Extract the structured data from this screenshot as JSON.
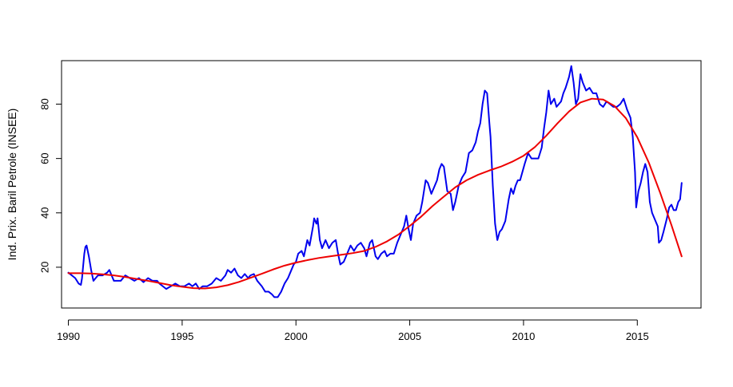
{
  "chart_data": {
    "type": "line",
    "title": "",
    "xlabel": "",
    "ylabel": "Ind. Prix. Baril Petrole (INSEE)",
    "xlim": [
      1989.7,
      2017.8
    ],
    "ylim": [
      5,
      96
    ],
    "x_ticks": [
      1990,
      1995,
      2000,
      2005,
      2010,
      2015
    ],
    "y_ticks": [
      20,
      40,
      60,
      80
    ],
    "grid": false,
    "legend": "none",
    "colors": {
      "series": "#0000ee",
      "trend": "#ee0000"
    },
    "series": [
      {
        "values": [
          [
            1990.0,
            18
          ],
          [
            1990.3,
            16
          ],
          [
            1990.45,
            14
          ],
          [
            1990.55,
            13.5
          ],
          [
            1990.6,
            16
          ],
          [
            1990.7,
            25
          ],
          [
            1990.75,
            27.5
          ],
          [
            1990.8,
            28
          ],
          [
            1990.9,
            24
          ],
          [
            1991.0,
            19
          ],
          [
            1991.1,
            15
          ],
          [
            1991.3,
            17
          ],
          [
            1991.5,
            17
          ],
          [
            1991.7,
            18
          ],
          [
            1991.8,
            19
          ],
          [
            1991.9,
            17
          ],
          [
            1992.0,
            15
          ],
          [
            1992.3,
            15
          ],
          [
            1992.5,
            17
          ],
          [
            1992.7,
            16
          ],
          [
            1992.9,
            15
          ],
          [
            1993.1,
            16
          ],
          [
            1993.3,
            14.5
          ],
          [
            1993.5,
            16
          ],
          [
            1993.7,
            15
          ],
          [
            1993.9,
            15
          ],
          [
            1994.0,
            14
          ],
          [
            1994.15,
            13
          ],
          [
            1994.3,
            12
          ],
          [
            1994.5,
            13
          ],
          [
            1994.7,
            14
          ],
          [
            1994.9,
            13
          ],
          [
            1995.1,
            13
          ],
          [
            1995.3,
            14
          ],
          [
            1995.45,
            13
          ],
          [
            1995.6,
            14
          ],
          [
            1995.75,
            12
          ],
          [
            1995.9,
            13
          ],
          [
            1996.1,
            13
          ],
          [
            1996.3,
            14
          ],
          [
            1996.5,
            16
          ],
          [
            1996.7,
            15
          ],
          [
            1996.9,
            17
          ],
          [
            1997.0,
            19
          ],
          [
            1997.15,
            18
          ],
          [
            1997.3,
            19.5
          ],
          [
            1997.45,
            17
          ],
          [
            1997.6,
            16
          ],
          [
            1997.75,
            17.5
          ],
          [
            1997.9,
            16
          ],
          [
            1998.0,
            17
          ],
          [
            1998.15,
            17.5
          ],
          [
            1998.3,
            15
          ],
          [
            1998.5,
            13
          ],
          [
            1998.65,
            11
          ],
          [
            1998.8,
            11
          ],
          [
            1998.95,
            10
          ],
          [
            1999.05,
            9
          ],
          [
            1999.2,
            9
          ],
          [
            1999.35,
            11
          ],
          [
            1999.5,
            14
          ],
          [
            1999.65,
            16
          ],
          [
            1999.8,
            19
          ],
          [
            1999.9,
            21
          ],
          [
            2000.0,
            22
          ],
          [
            2000.1,
            25
          ],
          [
            2000.25,
            26
          ],
          [
            2000.35,
            24
          ],
          [
            2000.5,
            30
          ],
          [
            2000.6,
            28
          ],
          [
            2000.75,
            35
          ],
          [
            2000.8,
            38
          ],
          [
            2000.9,
            36
          ],
          [
            2000.95,
            38
          ],
          [
            2001.05,
            30
          ],
          [
            2001.15,
            27
          ],
          [
            2001.3,
            30
          ],
          [
            2001.45,
            27
          ],
          [
            2001.6,
            29
          ],
          [
            2001.75,
            30
          ],
          [
            2001.85,
            25
          ],
          [
            2001.95,
            21
          ],
          [
            2002.1,
            22
          ],
          [
            2002.25,
            25
          ],
          [
            2002.4,
            28
          ],
          [
            2002.55,
            26
          ],
          [
            2002.7,
            28
          ],
          [
            2002.85,
            29
          ],
          [
            2003.0,
            27
          ],
          [
            2003.1,
            24
          ],
          [
            2003.25,
            29
          ],
          [
            2003.35,
            30
          ],
          [
            2003.5,
            24
          ],
          [
            2003.6,
            23
          ],
          [
            2003.75,
            25
          ],
          [
            2003.9,
            26
          ],
          [
            2004.0,
            24
          ],
          [
            2004.15,
            25
          ],
          [
            2004.3,
            25
          ],
          [
            2004.45,
            29
          ],
          [
            2004.6,
            32
          ],
          [
            2004.75,
            35
          ],
          [
            2004.85,
            39
          ],
          [
            2004.95,
            34
          ],
          [
            2005.05,
            30
          ],
          [
            2005.15,
            36
          ],
          [
            2005.3,
            39
          ],
          [
            2005.45,
            40
          ],
          [
            2005.55,
            44
          ],
          [
            2005.7,
            52
          ],
          [
            2005.8,
            51
          ],
          [
            2005.95,
            47
          ],
          [
            2006.1,
            50
          ],
          [
            2006.2,
            52
          ],
          [
            2006.3,
            56
          ],
          [
            2006.4,
            58
          ],
          [
            2006.5,
            57
          ],
          [
            2006.65,
            48
          ],
          [
            2006.8,
            47
          ],
          [
            2006.9,
            41
          ],
          [
            2007.0,
            44
          ],
          [
            2007.15,
            50
          ],
          [
            2007.3,
            53
          ],
          [
            2007.45,
            55
          ],
          [
            2007.6,
            62
          ],
          [
            2007.75,
            63
          ],
          [
            2007.9,
            66
          ],
          [
            2008.0,
            70
          ],
          [
            2008.1,
            73
          ],
          [
            2008.2,
            80
          ],
          [
            2008.3,
            85
          ],
          [
            2008.4,
            84
          ],
          [
            2008.5,
            73
          ],
          [
            2008.55,
            68
          ],
          [
            2008.65,
            50
          ],
          [
            2008.75,
            36
          ],
          [
            2008.85,
            30
          ],
          [
            2008.95,
            33
          ],
          [
            2009.05,
            34
          ],
          [
            2009.2,
            37
          ],
          [
            2009.35,
            45
          ],
          [
            2009.45,
            49
          ],
          [
            2009.55,
            47
          ],
          [
            2009.65,
            50
          ],
          [
            2009.75,
            52
          ],
          [
            2009.85,
            52
          ],
          [
            2009.95,
            55
          ],
          [
            2010.05,
            58
          ],
          [
            2010.2,
            62
          ],
          [
            2010.35,
            60
          ],
          [
            2010.5,
            60
          ],
          [
            2010.65,
            60
          ],
          [
            2010.8,
            64
          ],
          [
            2010.9,
            71
          ],
          [
            2011.0,
            77
          ],
          [
            2011.1,
            85
          ],
          [
            2011.2,
            80
          ],
          [
            2011.35,
            82
          ],
          [
            2011.45,
            79
          ],
          [
            2011.55,
            80
          ],
          [
            2011.65,
            81
          ],
          [
            2011.75,
            84
          ],
          [
            2011.85,
            86
          ],
          [
            2012.0,
            90
          ],
          [
            2012.1,
            94
          ],
          [
            2012.2,
            88
          ],
          [
            2012.3,
            80
          ],
          [
            2012.4,
            82
          ],
          [
            2012.5,
            91
          ],
          [
            2012.6,
            88
          ],
          [
            2012.75,
            85
          ],
          [
            2012.9,
            86
          ],
          [
            2013.05,
            84
          ],
          [
            2013.2,
            84
          ],
          [
            2013.35,
            80
          ],
          [
            2013.5,
            79
          ],
          [
            2013.65,
            81
          ],
          [
            2013.8,
            80
          ],
          [
            2013.95,
            79
          ],
          [
            2014.1,
            79
          ],
          [
            2014.25,
            80
          ],
          [
            2014.4,
            82
          ],
          [
            2014.55,
            78
          ],
          [
            2014.7,
            75
          ],
          [
            2014.8,
            68
          ],
          [
            2014.9,
            55
          ],
          [
            2014.95,
            42
          ],
          [
            2015.05,
            48
          ],
          [
            2015.15,
            51
          ],
          [
            2015.25,
            55
          ],
          [
            2015.35,
            58
          ],
          [
            2015.45,
            55
          ],
          [
            2015.55,
            44
          ],
          [
            2015.65,
            40
          ],
          [
            2015.8,
            37
          ],
          [
            2015.9,
            35
          ],
          [
            2015.95,
            29
          ],
          [
            2016.05,
            30
          ],
          [
            2016.15,
            33
          ],
          [
            2016.3,
            38
          ],
          [
            2016.4,
            42
          ],
          [
            2016.5,
            43
          ],
          [
            2016.6,
            41
          ],
          [
            2016.7,
            41
          ],
          [
            2016.8,
            44
          ],
          [
            2016.88,
            45
          ],
          [
            2016.95,
            51
          ]
        ]
      },
      {
        "values": [
          [
            1990.0,
            17.8
          ],
          [
            1990.5,
            17.8
          ],
          [
            1991.0,
            17.7
          ],
          [
            1991.5,
            17.4
          ],
          [
            1992.0,
            17.0
          ],
          [
            1992.5,
            16.4
          ],
          [
            1993.0,
            15.7
          ],
          [
            1993.5,
            15.0
          ],
          [
            1994.0,
            14.2
          ],
          [
            1994.5,
            13.4
          ],
          [
            1995.0,
            12.8
          ],
          [
            1995.5,
            12.3
          ],
          [
            1996.0,
            12.2
          ],
          [
            1996.5,
            12.6
          ],
          [
            1997.0,
            13.4
          ],
          [
            1997.5,
            14.6
          ],
          [
            1998.0,
            16.1
          ],
          [
            1998.5,
            17.6
          ],
          [
            1999.0,
            19.2
          ],
          [
            1999.5,
            20.6
          ],
          [
            2000.0,
            21.7
          ],
          [
            2000.5,
            22.6
          ],
          [
            2001.0,
            23.4
          ],
          [
            2001.5,
            24.0
          ],
          [
            2002.0,
            24.6
          ],
          [
            2002.5,
            25.2
          ],
          [
            2003.0,
            26.0
          ],
          [
            2003.5,
            27.5
          ],
          [
            2004.0,
            29.5
          ],
          [
            2004.5,
            32.0
          ],
          [
            2005.0,
            35.2
          ],
          [
            2005.5,
            38.6
          ],
          [
            2006.0,
            42.5
          ],
          [
            2006.5,
            46.0
          ],
          [
            2007.0,
            49.4
          ],
          [
            2007.5,
            52.0
          ],
          [
            2008.0,
            54.0
          ],
          [
            2008.5,
            55.6
          ],
          [
            2009.0,
            57.0
          ],
          [
            2009.5,
            58.8
          ],
          [
            2010.0,
            61.0
          ],
          [
            2010.5,
            64.2
          ],
          [
            2011.0,
            68.4
          ],
          [
            2011.5,
            73.0
          ],
          [
            2012.0,
            77.3
          ],
          [
            2012.5,
            80.6
          ],
          [
            2013.0,
            82.0
          ],
          [
            2013.5,
            81.7
          ],
          [
            2014.0,
            79.3
          ],
          [
            2014.5,
            74.8
          ],
          [
            2015.0,
            67.8
          ],
          [
            2015.5,
            58.6
          ],
          [
            2016.0,
            47.5
          ],
          [
            2016.5,
            35.5
          ],
          [
            2016.95,
            24.0
          ]
        ]
      }
    ]
  }
}
